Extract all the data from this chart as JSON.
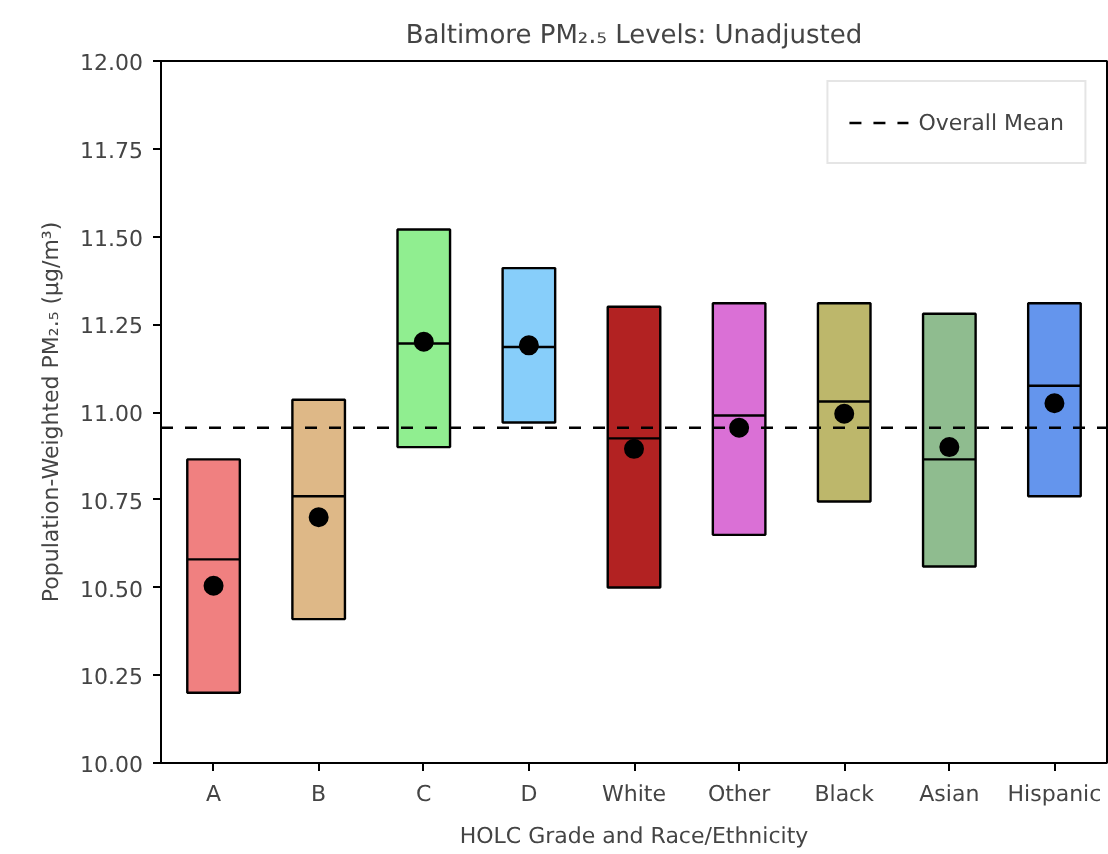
{
  "chart_data": {
    "type": "box",
    "title": "Baltimore PM₂.₅ Levels: Unadjusted",
    "xlabel": "HOLC Grade and Race/Ethnicity",
    "ylabel": "Population-Weighted PM₂.₅ (µg/m³)",
    "categories": [
      "A",
      "B",
      "C",
      "D",
      "White",
      "Other",
      "Black",
      "Asian",
      "Hispanic"
    ],
    "colors": [
      "#f08080",
      "#deb887",
      "#90ee90",
      "#87cefa",
      "#b22222",
      "#da70d6",
      "#bdb76b",
      "#8fbc8f",
      "#6495ed"
    ],
    "boxes": [
      {
        "low": 10.2,
        "q1": 10.2,
        "median": 10.58,
        "q3": 10.865,
        "high": 10.865,
        "mean": 10.505
      },
      {
        "low": 10.41,
        "q1": 10.41,
        "median": 10.76,
        "q3": 11.035,
        "high": 11.035,
        "mean": 10.7
      },
      {
        "low": 10.9,
        "q1": 10.9,
        "median": 11.195,
        "q3": 11.52,
        "high": 11.52,
        "mean": 11.2
      },
      {
        "low": 10.97,
        "q1": 10.97,
        "median": 11.185,
        "q3": 11.41,
        "high": 11.41,
        "mean": 11.19
      },
      {
        "low": 10.5,
        "q1": 10.5,
        "median": 10.925,
        "q3": 11.3,
        "high": 11.3,
        "mean": 10.895
      },
      {
        "low": 10.65,
        "q1": 10.65,
        "median": 10.99,
        "q3": 11.31,
        "high": 11.31,
        "mean": 10.955
      },
      {
        "low": 10.745,
        "q1": 10.745,
        "median": 11.03,
        "q3": 11.31,
        "high": 11.31,
        "mean": 10.995
      },
      {
        "low": 10.56,
        "q1": 10.56,
        "median": 10.865,
        "q3": 11.28,
        "high": 11.28,
        "mean": 10.9
      },
      {
        "low": 10.76,
        "q1": 10.76,
        "median": 11.075,
        "q3": 11.31,
        "high": 11.31,
        "mean": 11.025
      }
    ],
    "ylim": [
      10.0,
      12.0
    ],
    "yticks": [
      {
        "value": 10,
        "label": "10.00"
      },
      {
        "value": 10.25,
        "label": "10.25"
      },
      {
        "value": 10.5,
        "label": "10.50"
      },
      {
        "value": 10.75,
        "label": "10.75"
      },
      {
        "value": 11,
        "label": "11.00"
      },
      {
        "value": 11.25,
        "label": "11.25"
      },
      {
        "value": 11.5,
        "label": "11.50"
      },
      {
        "value": 11.75,
        "label": "11.75"
      },
      {
        "value": 12,
        "label": "12.00"
      }
    ],
    "ref_lines": [
      {
        "axis": "y",
        "value": 10.955,
        "label": "Overall Mean",
        "color": "#000000",
        "line_style": "dashed"
      }
    ],
    "legend": "top right",
    "grid": false
  }
}
